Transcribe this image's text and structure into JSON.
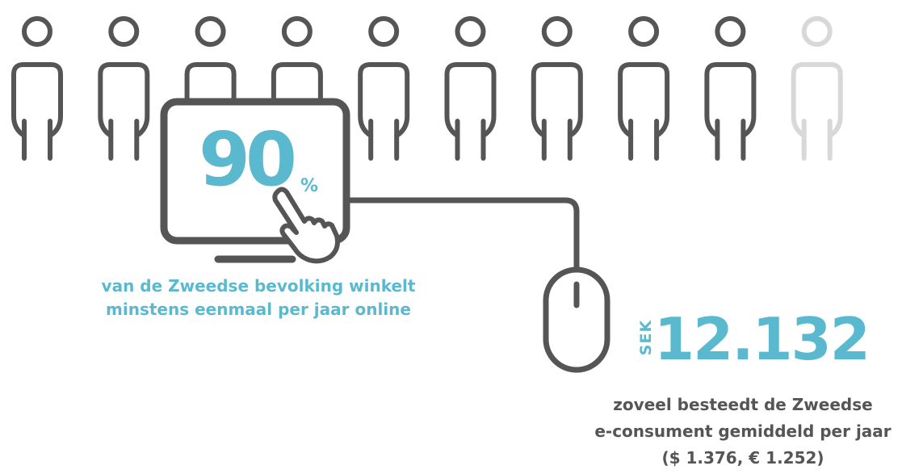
{
  "colors": {
    "accent": "#5bb9cf",
    "outline": "#555555",
    "faded": "#d8d8d8",
    "caption_dark": "#555555"
  },
  "people": {
    "total": 10,
    "highlighted": 9,
    "icon": "person-icon"
  },
  "stat_online": {
    "value": "90",
    "unit": "%",
    "caption_line1": "van de Zweedse bevolking winkelt",
    "caption_line2": "minstens eenmaal per jaar online"
  },
  "stat_spend": {
    "currency": "SEK",
    "value": "12.132",
    "caption_line1": "zoveel besteedt de Zweedse",
    "caption_line2": "e-consument gemiddeld per jaar",
    "caption_line3": "($ 1.376, € 1.252)"
  },
  "icons": {
    "monitor": "monitor-icon",
    "hand": "pointing-hand-icon",
    "mouse": "computer-mouse-icon",
    "cable": "mouse-cable"
  }
}
